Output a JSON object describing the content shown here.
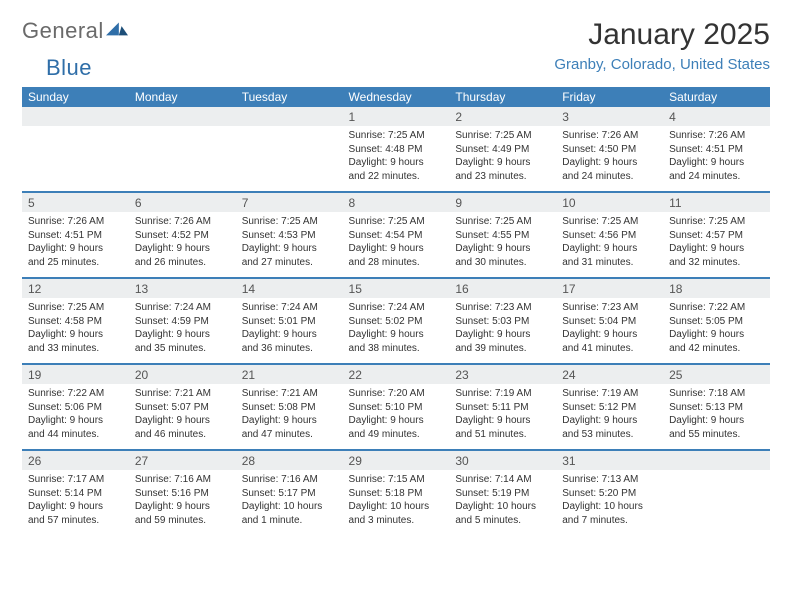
{
  "logo": {
    "text1": "General",
    "text2": "Blue"
  },
  "header": {
    "month_title": "January 2025",
    "location": "Granby, Colorado, United States"
  },
  "colors": {
    "header_bg": "#3d7fb8",
    "header_text": "#ffffff",
    "daynum_bg": "#eceeef",
    "row_border": "#3d7fb8",
    "location_text": "#3d7fb8",
    "body_text": "#333333"
  },
  "calendar": {
    "type": "calendar-table",
    "day_labels": [
      "Sunday",
      "Monday",
      "Tuesday",
      "Wednesday",
      "Thursday",
      "Friday",
      "Saturday"
    ],
    "weeks": [
      [
        {
          "n": "",
          "l": [
            "",
            "",
            "",
            ""
          ]
        },
        {
          "n": "",
          "l": [
            "",
            "",
            "",
            ""
          ]
        },
        {
          "n": "",
          "l": [
            "",
            "",
            "",
            ""
          ]
        },
        {
          "n": "1",
          "l": [
            "Sunrise: 7:25 AM",
            "Sunset: 4:48 PM",
            "Daylight: 9 hours",
            "and 22 minutes."
          ]
        },
        {
          "n": "2",
          "l": [
            "Sunrise: 7:25 AM",
            "Sunset: 4:49 PM",
            "Daylight: 9 hours",
            "and 23 minutes."
          ]
        },
        {
          "n": "3",
          "l": [
            "Sunrise: 7:26 AM",
            "Sunset: 4:50 PM",
            "Daylight: 9 hours",
            "and 24 minutes."
          ]
        },
        {
          "n": "4",
          "l": [
            "Sunrise: 7:26 AM",
            "Sunset: 4:51 PM",
            "Daylight: 9 hours",
            "and 24 minutes."
          ]
        }
      ],
      [
        {
          "n": "5",
          "l": [
            "Sunrise: 7:26 AM",
            "Sunset: 4:51 PM",
            "Daylight: 9 hours",
            "and 25 minutes."
          ]
        },
        {
          "n": "6",
          "l": [
            "Sunrise: 7:26 AM",
            "Sunset: 4:52 PM",
            "Daylight: 9 hours",
            "and 26 minutes."
          ]
        },
        {
          "n": "7",
          "l": [
            "Sunrise: 7:25 AM",
            "Sunset: 4:53 PM",
            "Daylight: 9 hours",
            "and 27 minutes."
          ]
        },
        {
          "n": "8",
          "l": [
            "Sunrise: 7:25 AM",
            "Sunset: 4:54 PM",
            "Daylight: 9 hours",
            "and 28 minutes."
          ]
        },
        {
          "n": "9",
          "l": [
            "Sunrise: 7:25 AM",
            "Sunset: 4:55 PM",
            "Daylight: 9 hours",
            "and 30 minutes."
          ]
        },
        {
          "n": "10",
          "l": [
            "Sunrise: 7:25 AM",
            "Sunset: 4:56 PM",
            "Daylight: 9 hours",
            "and 31 minutes."
          ]
        },
        {
          "n": "11",
          "l": [
            "Sunrise: 7:25 AM",
            "Sunset: 4:57 PM",
            "Daylight: 9 hours",
            "and 32 minutes."
          ]
        }
      ],
      [
        {
          "n": "12",
          "l": [
            "Sunrise: 7:25 AM",
            "Sunset: 4:58 PM",
            "Daylight: 9 hours",
            "and 33 minutes."
          ]
        },
        {
          "n": "13",
          "l": [
            "Sunrise: 7:24 AM",
            "Sunset: 4:59 PM",
            "Daylight: 9 hours",
            "and 35 minutes."
          ]
        },
        {
          "n": "14",
          "l": [
            "Sunrise: 7:24 AM",
            "Sunset: 5:01 PM",
            "Daylight: 9 hours",
            "and 36 minutes."
          ]
        },
        {
          "n": "15",
          "l": [
            "Sunrise: 7:24 AM",
            "Sunset: 5:02 PM",
            "Daylight: 9 hours",
            "and 38 minutes."
          ]
        },
        {
          "n": "16",
          "l": [
            "Sunrise: 7:23 AM",
            "Sunset: 5:03 PM",
            "Daylight: 9 hours",
            "and 39 minutes."
          ]
        },
        {
          "n": "17",
          "l": [
            "Sunrise: 7:23 AM",
            "Sunset: 5:04 PM",
            "Daylight: 9 hours",
            "and 41 minutes."
          ]
        },
        {
          "n": "18",
          "l": [
            "Sunrise: 7:22 AM",
            "Sunset: 5:05 PM",
            "Daylight: 9 hours",
            "and 42 minutes."
          ]
        }
      ],
      [
        {
          "n": "19",
          "l": [
            "Sunrise: 7:22 AM",
            "Sunset: 5:06 PM",
            "Daylight: 9 hours",
            "and 44 minutes."
          ]
        },
        {
          "n": "20",
          "l": [
            "Sunrise: 7:21 AM",
            "Sunset: 5:07 PM",
            "Daylight: 9 hours",
            "and 46 minutes."
          ]
        },
        {
          "n": "21",
          "l": [
            "Sunrise: 7:21 AM",
            "Sunset: 5:08 PM",
            "Daylight: 9 hours",
            "and 47 minutes."
          ]
        },
        {
          "n": "22",
          "l": [
            "Sunrise: 7:20 AM",
            "Sunset: 5:10 PM",
            "Daylight: 9 hours",
            "and 49 minutes."
          ]
        },
        {
          "n": "23",
          "l": [
            "Sunrise: 7:19 AM",
            "Sunset: 5:11 PM",
            "Daylight: 9 hours",
            "and 51 minutes."
          ]
        },
        {
          "n": "24",
          "l": [
            "Sunrise: 7:19 AM",
            "Sunset: 5:12 PM",
            "Daylight: 9 hours",
            "and 53 minutes."
          ]
        },
        {
          "n": "25",
          "l": [
            "Sunrise: 7:18 AM",
            "Sunset: 5:13 PM",
            "Daylight: 9 hours",
            "and 55 minutes."
          ]
        }
      ],
      [
        {
          "n": "26",
          "l": [
            "Sunrise: 7:17 AM",
            "Sunset: 5:14 PM",
            "Daylight: 9 hours",
            "and 57 minutes."
          ]
        },
        {
          "n": "27",
          "l": [
            "Sunrise: 7:16 AM",
            "Sunset: 5:16 PM",
            "Daylight: 9 hours",
            "and 59 minutes."
          ]
        },
        {
          "n": "28",
          "l": [
            "Sunrise: 7:16 AM",
            "Sunset: 5:17 PM",
            "Daylight: 10 hours",
            "and 1 minute."
          ]
        },
        {
          "n": "29",
          "l": [
            "Sunrise: 7:15 AM",
            "Sunset: 5:18 PM",
            "Daylight: 10 hours",
            "and 3 minutes."
          ]
        },
        {
          "n": "30",
          "l": [
            "Sunrise: 7:14 AM",
            "Sunset: 5:19 PM",
            "Daylight: 10 hours",
            "and 5 minutes."
          ]
        },
        {
          "n": "31",
          "l": [
            "Sunrise: 7:13 AM",
            "Sunset: 5:20 PM",
            "Daylight: 10 hours",
            "and 7 minutes."
          ]
        },
        {
          "n": "",
          "l": [
            "",
            "",
            "",
            ""
          ]
        }
      ]
    ]
  }
}
